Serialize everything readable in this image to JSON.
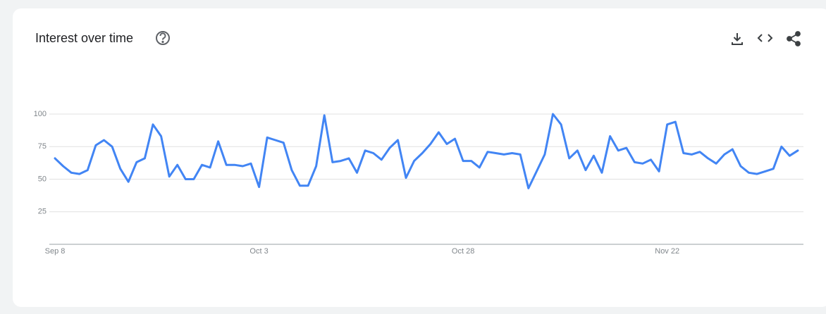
{
  "chart_data": {
    "type": "line",
    "title": "Interest over time",
    "categories": [
      "Sep 8",
      null,
      null,
      null,
      null,
      null,
      null,
      null,
      null,
      null,
      null,
      null,
      null,
      null,
      null,
      null,
      null,
      null,
      null,
      null,
      null,
      null,
      null,
      null,
      null,
      "Oct 3",
      null,
      null,
      null,
      null,
      null,
      null,
      null,
      null,
      null,
      null,
      null,
      null,
      null,
      null,
      null,
      null,
      null,
      null,
      null,
      null,
      null,
      null,
      null,
      null,
      "Oct 28",
      null,
      null,
      null,
      null,
      null,
      null,
      null,
      null,
      null,
      null,
      null,
      null,
      null,
      null,
      null,
      null,
      null,
      null,
      null,
      null,
      null,
      null,
      null,
      null,
      "Nov 22",
      null,
      null,
      null,
      null,
      null,
      null,
      null,
      null,
      null,
      null,
      null,
      null,
      null,
      null,
      null,
      null
    ],
    "values": [
      66,
      60,
      55,
      54,
      57,
      76,
      80,
      75,
      58,
      48,
      63,
      66,
      92,
      83,
      52,
      61,
      50,
      50,
      61,
      59,
      79,
      61,
      61,
      60,
      62,
      44,
      82,
      80,
      78,
      57,
      45,
      45,
      60,
      99,
      63,
      64,
      66,
      55,
      72,
      70,
      65,
      74,
      80,
      51,
      64,
      70,
      77,
      86,
      77,
      81,
      64,
      64,
      59,
      71,
      70,
      69,
      70,
      69,
      43,
      56,
      69,
      100,
      92,
      66,
      72,
      57,
      68,
      55,
      83,
      72,
      74,
      63,
      62,
      65,
      56,
      92,
      94,
      70,
      69,
      71,
      66,
      62,
      69,
      73,
      60,
      55,
      54,
      56,
      58,
      75,
      68,
      72
    ],
    "color": "#4285f4",
    "ylim": [
      0,
      100
    ],
    "yticks": [
      25,
      50,
      75,
      100
    ],
    "grid": true
  }
}
